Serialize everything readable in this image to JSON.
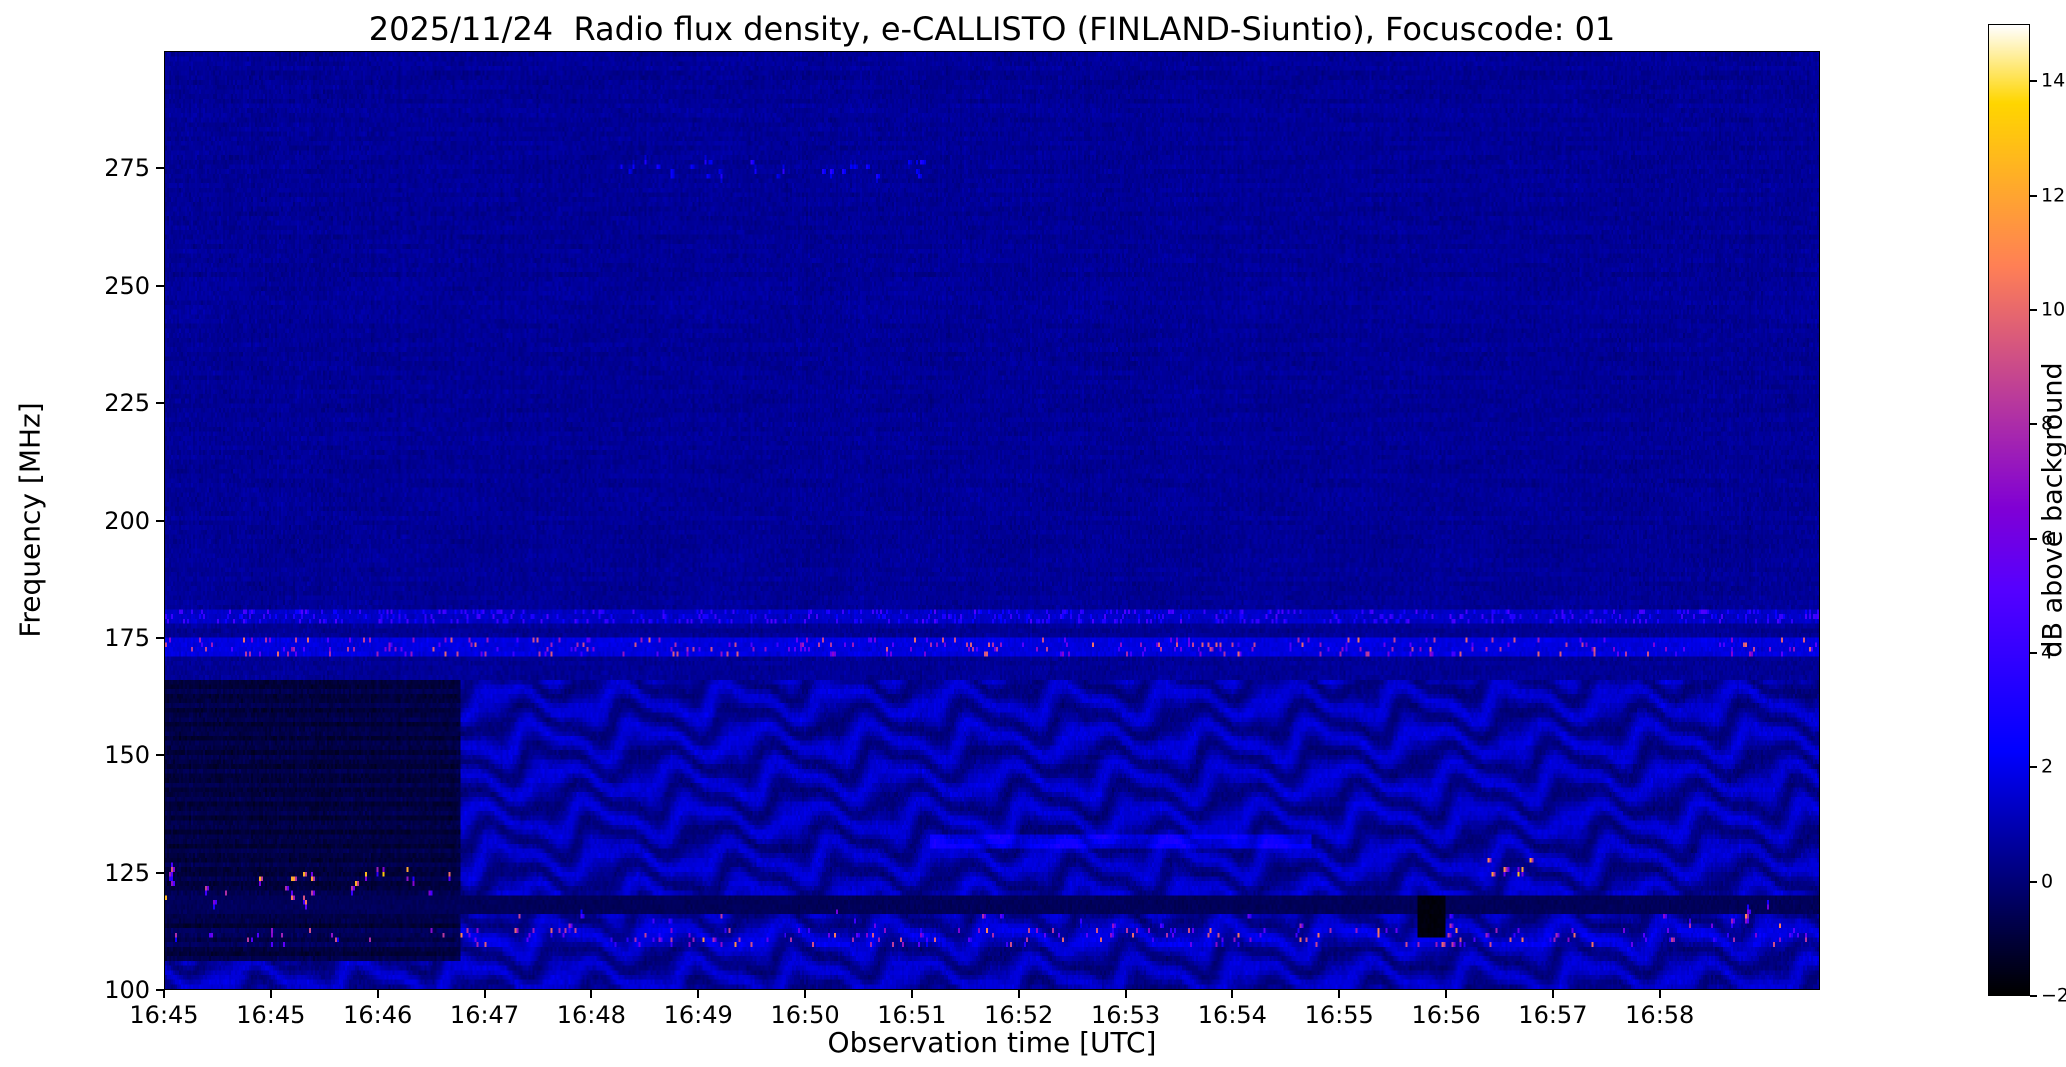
{
  "chart_data": {
    "type": "heatmap",
    "title": "2025/11/24  Radio flux density, e-CALLISTO (FINLAND-Siuntio), Focuscode: 01",
    "xlabel": "Observation time [UTC]",
    "ylabel": "Frequency [MHz]",
    "colorbar_label": "dB above background",
    "colormap": "gnuplot2",
    "grid": false,
    "legend": "none",
    "value_range_db": [
      -2,
      15
    ],
    "colorbar_ticks": [
      14,
      12,
      10,
      8,
      6,
      4,
      2,
      0,
      -2
    ],
    "y_range_mhz": [
      100,
      300
    ],
    "y_ticks": [
      275,
      250,
      225,
      200,
      175,
      150,
      125,
      100
    ],
    "x_ticks": [
      "16:45",
      "16:45",
      "16:46",
      "16:47",
      "16:48",
      "16:49",
      "16:50",
      "16:51",
      "16:52",
      "16:53",
      "16:54",
      "16:55",
      "16:56",
      "16:57",
      "16:58"
    ],
    "x_start_utc": "16:45",
    "time_span_s": 930,
    "seconds_per_tick": 60,
    "features": [
      {
        "kind": "background",
        "mean_db": 0.5,
        "noise_db": 0.3
      },
      {
        "kind": "interference_fringes",
        "freq_mhz": [
          100,
          166
        ],
        "time_s": [
          0,
          930
        ],
        "mean_offset_db": 0.35,
        "amplitude_db": 0.8
      },
      {
        "kind": "dark_patch",
        "freq_mhz": [
          106,
          166
        ],
        "time_s": [
          0,
          166
        ],
        "mean_db": -0.9,
        "noise_db": 0.3
      },
      {
        "kind": "rfi_line",
        "freq_mhz": [
          171.5,
          174.5
        ],
        "time_s": [
          0,
          930
        ],
        "base_db": 1.2,
        "speckle_db": 6,
        "speckle_rate": 0.08
      },
      {
        "kind": "rfi_line",
        "freq_mhz": [
          178,
          180.5
        ],
        "time_s": [
          0,
          930
        ],
        "base_db": 0.8,
        "speckle_db": 2.5,
        "speckle_rate": 0.18
      },
      {
        "kind": "rfi_line",
        "freq_mhz": [
          109.5,
          113
        ],
        "time_s": [
          0,
          930
        ],
        "base_db": 0.3,
        "speckle_db": 7,
        "speckle_rate": 0.05
      },
      {
        "kind": "dark_line",
        "freq_mhz": [
          116.5,
          119.5
        ],
        "time_s": [
          0,
          930
        ],
        "value_db": -0.5
      },
      {
        "kind": "soft_line",
        "freq_mhz": [
          130.5,
          133
        ],
        "time_s": [
          430,
          645
        ],
        "value_db": 1.3
      },
      {
        "kind": "bright_spots",
        "freq_mhz": [
          118,
          128
        ],
        "time_s": [
          0,
          170
        ],
        "count": 28,
        "peak_db": 12
      },
      {
        "kind": "bright_spots",
        "freq_mhz": [
          124.5,
          127.5
        ],
        "time_s": [
          740,
          772
        ],
        "count": 7,
        "peak_db": 13
      },
      {
        "kind": "bright_spots",
        "freq_mhz": [
          110,
          117
        ],
        "time_s": [
          170,
          930
        ],
        "count": 42,
        "peak_db": 8
      },
      {
        "kind": "bright_spots",
        "freq_mhz": [
          112,
          119
        ],
        "time_s": [
          875,
          910
        ],
        "count": 5,
        "peak_db": 11
      },
      {
        "kind": "speckles",
        "freq_mhz": [
          273.5,
          276.5
        ],
        "time_s": [
          255,
          435
        ],
        "count": 32,
        "peak_db": 3.5
      },
      {
        "kind": "dark_spot",
        "freq_mhz": [
          111,
          120
        ],
        "time_s": [
          705,
          719
        ],
        "value_db": -1.8
      }
    ]
  }
}
